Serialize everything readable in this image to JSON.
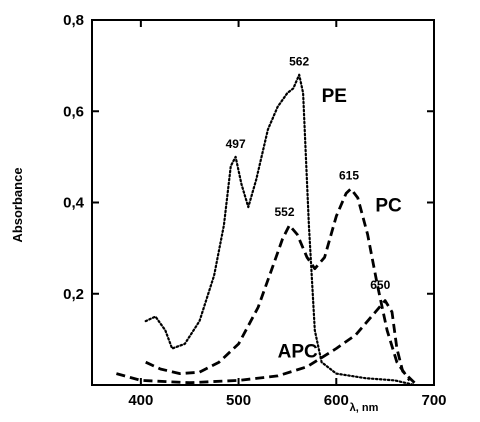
{
  "chart_data": {
    "type": "line",
    "title": "",
    "ylabel": "Absorbance",
    "xlabel": "λ, nm",
    "xlim": [
      350,
      700
    ],
    "ylim": [
      0,
      0.8
    ],
    "x_ticks": [
      {
        "value": 400,
        "label": "400"
      },
      {
        "value": 500,
        "label": "500"
      },
      {
        "value": 600,
        "label": "600"
      },
      {
        "value": 700,
        "label": "700"
      }
    ],
    "y_ticks": [
      {
        "value": 0.2,
        "label": "0,2"
      },
      {
        "value": 0.4,
        "label": "0,4"
      },
      {
        "value": 0.6,
        "label": "0,6"
      },
      {
        "value": 0.8,
        "label": "0,8"
      }
    ],
    "series": [
      {
        "name": "PE",
        "style": "dotted",
        "points": [
          [
            405,
            0.14
          ],
          [
            415,
            0.15
          ],
          [
            425,
            0.12
          ],
          [
            432,
            0.08
          ],
          [
            445,
            0.09
          ],
          [
            460,
            0.14
          ],
          [
            475,
            0.24
          ],
          [
            485,
            0.35
          ],
          [
            492,
            0.48
          ],
          [
            497,
            0.5
          ],
          [
            503,
            0.44
          ],
          [
            510,
            0.39
          ],
          [
            518,
            0.45
          ],
          [
            530,
            0.56
          ],
          [
            540,
            0.61
          ],
          [
            550,
            0.64
          ],
          [
            556,
            0.65
          ],
          [
            562,
            0.68
          ],
          [
            566,
            0.64
          ],
          [
            572,
            0.35
          ],
          [
            578,
            0.12
          ],
          [
            585,
            0.05
          ],
          [
            600,
            0.025
          ],
          [
            630,
            0.015
          ],
          [
            660,
            0.01
          ],
          [
            680,
            0.0
          ]
        ]
      },
      {
        "name": "PC",
        "style": "dashed",
        "points": [
          [
            405,
            0.05
          ],
          [
            420,
            0.035
          ],
          [
            440,
            0.025
          ],
          [
            460,
            0.028
          ],
          [
            480,
            0.05
          ],
          [
            500,
            0.09
          ],
          [
            520,
            0.17
          ],
          [
            535,
            0.26
          ],
          [
            545,
            0.32
          ],
          [
            552,
            0.35
          ],
          [
            560,
            0.33
          ],
          [
            570,
            0.28
          ],
          [
            578,
            0.255
          ],
          [
            588,
            0.28
          ],
          [
            600,
            0.37
          ],
          [
            610,
            0.42
          ],
          [
            615,
            0.43
          ],
          [
            622,
            0.41
          ],
          [
            632,
            0.33
          ],
          [
            642,
            0.22
          ],
          [
            652,
            0.12
          ],
          [
            662,
            0.05
          ],
          [
            675,
            0.01
          ]
        ]
      },
      {
        "name": "APC",
        "style": "dashed",
        "points": [
          [
            375,
            0.025
          ],
          [
            400,
            0.01
          ],
          [
            450,
            0.005
          ],
          [
            500,
            0.01
          ],
          [
            540,
            0.02
          ],
          [
            570,
            0.04
          ],
          [
            600,
            0.08
          ],
          [
            620,
            0.11
          ],
          [
            640,
            0.16
          ],
          [
            650,
            0.185
          ],
          [
            657,
            0.16
          ],
          [
            662,
            0.08
          ],
          [
            668,
            0.03
          ],
          [
            680,
            0.005
          ]
        ]
      }
    ],
    "series_labels": [
      {
        "text": "PE",
        "x": 585,
        "y": 0.62
      },
      {
        "text": "PC",
        "x": 640,
        "y": 0.38
      },
      {
        "text": "APC",
        "x": 540,
        "y": 0.06
      }
    ],
    "annotations": [
      {
        "text": "562",
        "x": 562,
        "y": 0.7
      },
      {
        "text": "497",
        "x": 497,
        "y": 0.52
      },
      {
        "text": "552",
        "x": 547,
        "y": 0.37
      },
      {
        "text": "615",
        "x": 613,
        "y": 0.45
      },
      {
        "text": "650",
        "x": 645,
        "y": 0.21
      }
    ],
    "grid": false,
    "legend": "none"
  },
  "colors": {
    "line": "#000000",
    "background": "#ffffff"
  }
}
